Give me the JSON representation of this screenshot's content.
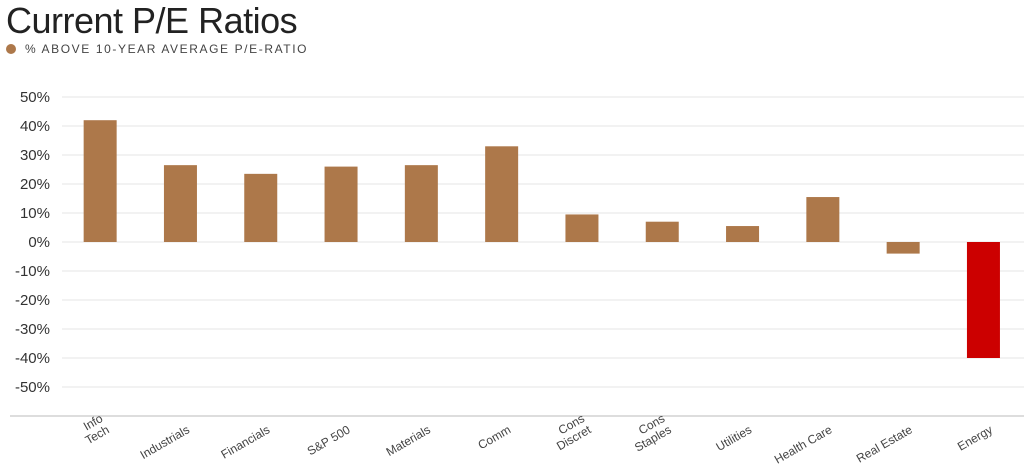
{
  "chart_data": {
    "type": "bar",
    "title": "Current P/E Ratios",
    "legend": [
      {
        "label": "% ABOVE 10-YEAR AVERAGE P/E-RATIO",
        "color": "#ad784a"
      }
    ],
    "categories": [
      [
        "Info",
        "Tech"
      ],
      [
        "Industrials"
      ],
      [
        "Financials"
      ],
      [
        "S&P 500"
      ],
      [
        "Materials"
      ],
      [
        "Comm"
      ],
      [
        "Cons",
        "Discret"
      ],
      [
        "Cons",
        "Staples"
      ],
      [
        "Utilities"
      ],
      [
        "Health Care"
      ],
      [
        "Real Estate"
      ],
      [
        "Energy"
      ]
    ],
    "series": [
      {
        "name": "% ABOVE 10-YEAR AVERAGE P/E-RATIO",
        "values": [
          42,
          26.5,
          23.5,
          26,
          26.5,
          33,
          9.5,
          7,
          5.5,
          15.5,
          -4,
          -40
        ]
      }
    ],
    "bar_colors": [
      "#ad784a",
      "#ad784a",
      "#ad784a",
      "#ad784a",
      "#ad784a",
      "#ad784a",
      "#ad784a",
      "#ad784a",
      "#ad784a",
      "#ad784a",
      "#ad784a",
      "#cc0000"
    ],
    "yticks": [
      50,
      40,
      30,
      20,
      10,
      0,
      -10,
      -20,
      -30,
      -40,
      -50
    ],
    "ytick_labels": [
      "50%",
      "40%",
      "30%",
      "20%",
      "10%",
      "0%",
      "-10%",
      "-20%",
      "-30%",
      "-40%",
      "-50%"
    ],
    "ylim": [
      -60,
      50
    ],
    "grid": true,
    "legend_position": "top-left",
    "gridline_color": "#e6e6e6",
    "axis_color": "#bbbbbb"
  }
}
